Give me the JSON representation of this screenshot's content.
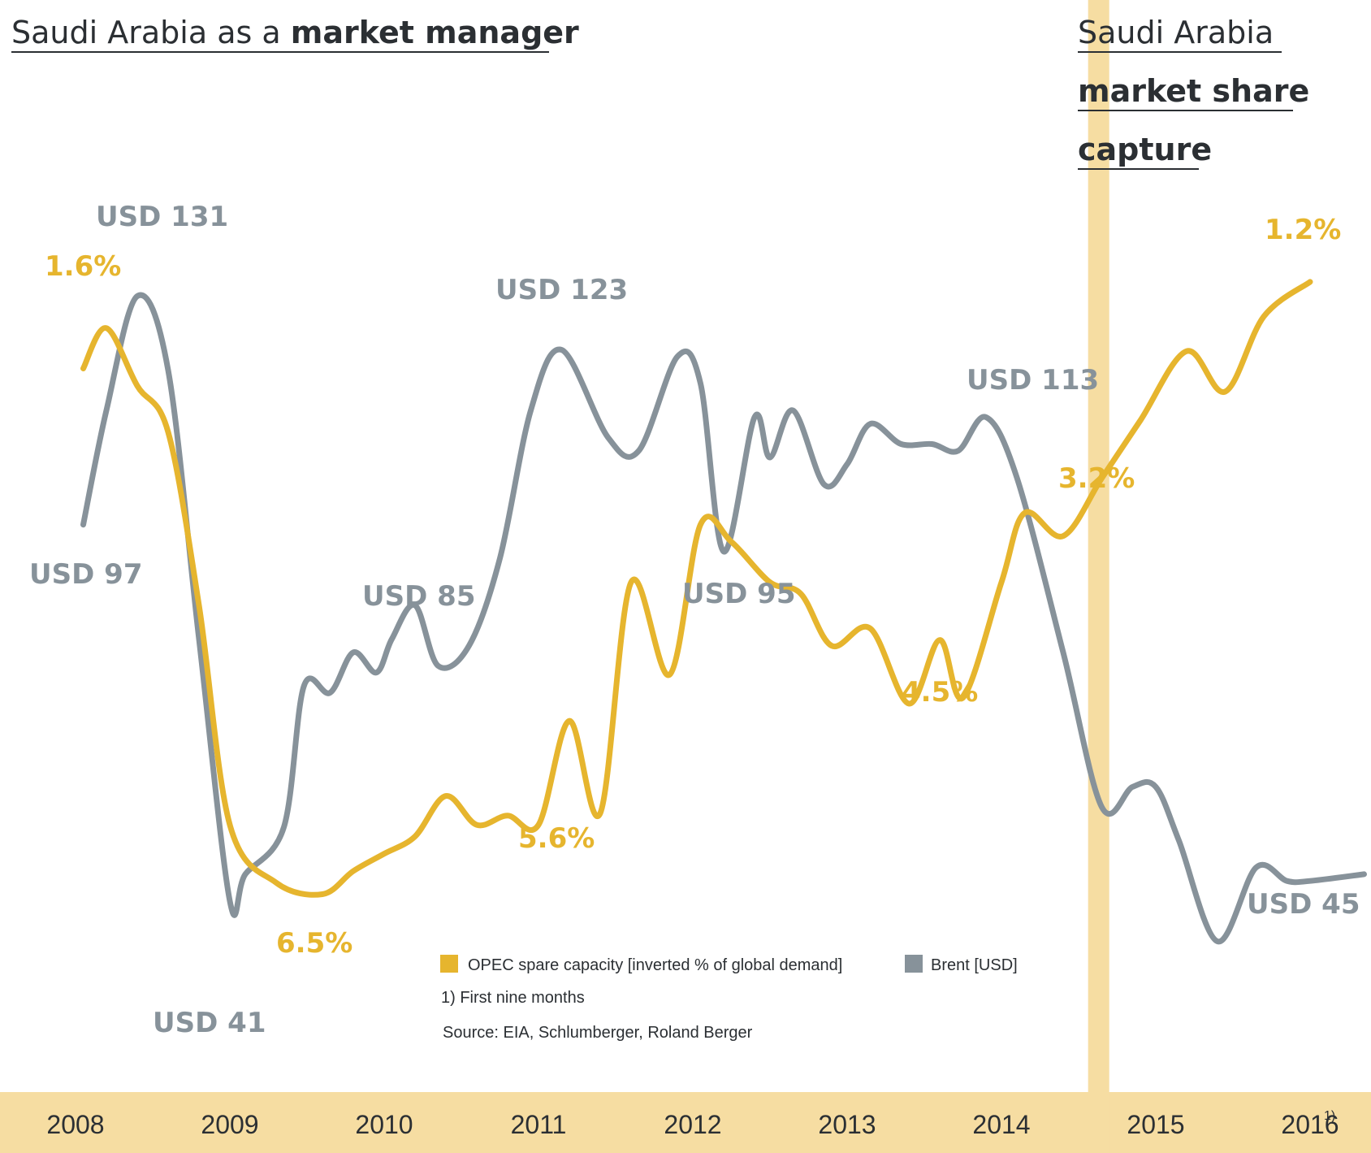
{
  "title_left": {
    "prefix": "Saudi Arabia as a ",
    "bold": "market manager"
  },
  "title_right": {
    "line1": "Saudi Arabia",
    "line2": "market share",
    "line3": "capture"
  },
  "legend": {
    "opec": "OPEC spare capacity [inverted % of global demand]",
    "brent": "Brent [USD]"
  },
  "footnote": "1) First nine months",
  "source": "Source: EIA, Schlumberger, Roland Berger",
  "colors": {
    "opec": "#e6b52e",
    "brent": "#87929a",
    "band": "#f6dda2"
  },
  "chart_data": {
    "type": "line",
    "categories": [
      "2008",
      "2009",
      "2010",
      "2011",
      "2012",
      "2013",
      "2014",
      "2015",
      "2016"
    ],
    "tick_superscripts": {
      "2016": "1)"
    },
    "x_range": [
      2008.0,
      2016.9
    ],
    "divider_x": 2014.63,
    "series": [
      {
        "name": "Brent [USD]",
        "unit": "USD",
        "ylim": [
          30,
          140
        ],
        "points": [
          [
            2008.05,
            97
          ],
          [
            2008.2,
            114
          ],
          [
            2008.4,
            131
          ],
          [
            2008.6,
            120
          ],
          [
            2008.8,
            80
          ],
          [
            2009.0,
            41
          ],
          [
            2009.1,
            45
          ],
          [
            2009.35,
            52
          ],
          [
            2009.48,
            73
          ],
          [
            2009.65,
            72
          ],
          [
            2009.8,
            78
          ],
          [
            2009.95,
            75
          ],
          [
            2010.05,
            80
          ],
          [
            2010.2,
            85
          ],
          [
            2010.35,
            76
          ],
          [
            2010.55,
            79
          ],
          [
            2010.75,
            92
          ],
          [
            2010.95,
            114
          ],
          [
            2011.15,
            123
          ],
          [
            2011.45,
            110
          ],
          [
            2011.65,
            108
          ],
          [
            2011.9,
            122
          ],
          [
            2012.05,
            118
          ],
          [
            2012.2,
            93
          ],
          [
            2012.4,
            113
          ],
          [
            2012.5,
            107
          ],
          [
            2012.65,
            114
          ],
          [
            2012.85,
            103
          ],
          [
            2013.0,
            106
          ],
          [
            2013.15,
            112
          ],
          [
            2013.35,
            109
          ],
          [
            2013.55,
            109
          ],
          [
            2013.72,
            108
          ],
          [
            2013.9,
            113
          ],
          [
            2014.1,
            104
          ],
          [
            2014.4,
            78
          ],
          [
            2014.65,
            55
          ],
          [
            2014.85,
            58
          ],
          [
            2015.0,
            58
          ],
          [
            2015.15,
            50
          ],
          [
            2015.4,
            35
          ],
          [
            2015.65,
            46
          ],
          [
            2015.85,
            44
          ],
          [
            2016.0,
            44
          ],
          [
            2016.35,
            45
          ]
        ]
      },
      {
        "name": "OPEC spare capacity [inverted % of global demand]",
        "unit": "%",
        "inverted": true,
        "ylim": [
          0.8,
          7.2
        ],
        "points": [
          [
            2008.05,
            1.95
          ],
          [
            2008.2,
            1.6
          ],
          [
            2008.4,
            2.1
          ],
          [
            2008.6,
            2.5
          ],
          [
            2008.8,
            4.0
          ],
          [
            2009.0,
            5.9
          ],
          [
            2009.3,
            6.4
          ],
          [
            2009.6,
            6.5
          ],
          [
            2009.8,
            6.3
          ],
          [
            2010.0,
            6.15
          ],
          [
            2010.2,
            6.0
          ],
          [
            2010.4,
            5.65
          ],
          [
            2010.6,
            5.9
          ],
          [
            2010.8,
            5.82
          ],
          [
            2011.0,
            5.9
          ],
          [
            2011.2,
            5.0
          ],
          [
            2011.4,
            5.8
          ],
          [
            2011.6,
            3.8
          ],
          [
            2011.85,
            4.6
          ],
          [
            2012.05,
            3.3
          ],
          [
            2012.25,
            3.45
          ],
          [
            2012.5,
            3.8
          ],
          [
            2012.7,
            3.9
          ],
          [
            2012.9,
            4.35
          ],
          [
            2013.15,
            4.2
          ],
          [
            2013.4,
            4.85
          ],
          [
            2013.6,
            4.3
          ],
          [
            2013.75,
            4.8
          ],
          [
            2014.0,
            3.8
          ],
          [
            2014.15,
            3.2
          ],
          [
            2014.4,
            3.4
          ],
          [
            2014.65,
            2.9
          ],
          [
            2014.9,
            2.4
          ],
          [
            2015.2,
            1.8
          ],
          [
            2015.45,
            2.15
          ],
          [
            2015.7,
            1.5
          ],
          [
            2016.0,
            1.2
          ]
        ]
      }
    ],
    "annotations": [
      {
        "text": "USD 131",
        "series": "brent"
      },
      {
        "text": "USD 97",
        "series": "brent"
      },
      {
        "text": "USD 41",
        "series": "brent"
      },
      {
        "text": "USD 85",
        "series": "brent"
      },
      {
        "text": "USD 123",
        "series": "brent"
      },
      {
        "text": "USD 95",
        "series": "brent"
      },
      {
        "text": "USD 113",
        "series": "brent"
      },
      {
        "text": "USD 45",
        "series": "brent"
      },
      {
        "text": "1.6%",
        "series": "opec"
      },
      {
        "text": "6.5%",
        "series": "opec"
      },
      {
        "text": "5.6%",
        "series": "opec"
      },
      {
        "text": "4.5%",
        "series": "opec"
      },
      {
        "text": "3.2%",
        "series": "opec"
      },
      {
        "text": "1.2%",
        "series": "opec"
      }
    ],
    "grid": false,
    "legend_position": "bottom-center"
  }
}
